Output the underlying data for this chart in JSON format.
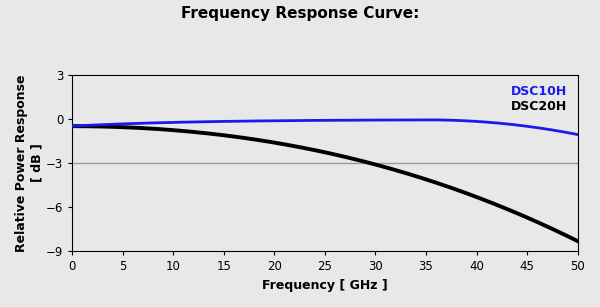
{
  "title": "Frequency Response Curve:",
  "xlabel": "Frequency [ GHz ]",
  "ylabel": "Relative Power Response\n[ dB ]",
  "xlim": [
    0,
    50
  ],
  "ylim": [
    -9,
    3
  ],
  "xticks": [
    0,
    5,
    10,
    15,
    20,
    25,
    30,
    35,
    40,
    45,
    50
  ],
  "yticks": [
    -9,
    -6,
    -3,
    0,
    3
  ],
  "hline_y": -3,
  "hline_color": "#999999",
  "dsc10h_color": "#1a1aee",
  "dsc20h_color": "#000000",
  "dsc10h_label": "DSC10H",
  "dsc20h_label": "DSC20H",
  "background_color": "#e8e8e8",
  "plot_background": "#e8e8e8",
  "title_fontsize": 11,
  "axis_label_fontsize": 9,
  "tick_fontsize": 8.5,
  "legend_fontsize": 9
}
